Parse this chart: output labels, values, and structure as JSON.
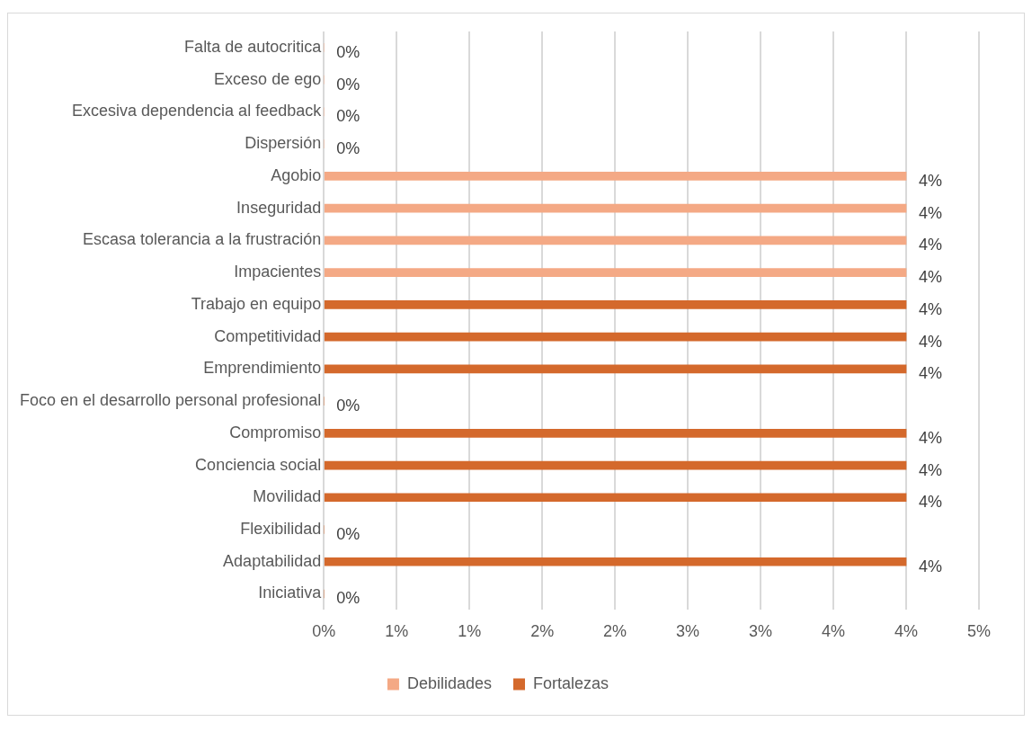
{
  "chart_data": {
    "type": "bar",
    "orientation": "horizontal",
    "categories": [
      "Falta de autocritica",
      "Exceso de ego",
      "Excesiva dependencia al feedback",
      "Dispersión",
      "Agobio",
      "Inseguridad",
      "Escasa tolerancia a la frustración",
      "Impacientes",
      "Trabajo en equipo",
      "Competitividad",
      "Emprendimiento",
      "Foco en el desarrollo personal profesional",
      "Compromiso",
      "Conciencia social",
      "Movilidad",
      "Flexibilidad",
      "Adaptabilidad",
      "Iniciativa"
    ],
    "series": [
      {
        "name": "Debilidades",
        "color": "#f4a985",
        "values": [
          0,
          0,
          0,
          0,
          4,
          4,
          4,
          4,
          null,
          null,
          null,
          null,
          null,
          null,
          null,
          null,
          null,
          null
        ],
        "value_labels": [
          "0%",
          "0%",
          "0%",
          "0%",
          "4%",
          "4%",
          "4%",
          "4%",
          null,
          null,
          null,
          null,
          null,
          null,
          null,
          null,
          null,
          null
        ]
      },
      {
        "name": "Fortalezas",
        "color": "#d4692c",
        "values": [
          null,
          null,
          null,
          null,
          null,
          null,
          null,
          null,
          4,
          4,
          4,
          0,
          4,
          4,
          4,
          0,
          4,
          0
        ],
        "value_labels": [
          null,
          null,
          null,
          null,
          null,
          null,
          null,
          null,
          "4%",
          "4%",
          "4%",
          "0%",
          "4%",
          "4%",
          "4%",
          "0%",
          "4%",
          "0%"
        ]
      }
    ],
    "xlim": [
      0,
      4.5
    ],
    "xticks": [
      {
        "value": 0,
        "label": "0%"
      },
      {
        "value": 0.5,
        "label": "1%"
      },
      {
        "value": 1,
        "label": "1%"
      },
      {
        "value": 1.5,
        "label": "2%"
      },
      {
        "value": 2,
        "label": "2%"
      },
      {
        "value": 2.5,
        "label": "3%"
      },
      {
        "value": 3,
        "label": "3%"
      },
      {
        "value": 3.5,
        "label": "4%"
      },
      {
        "value": 4,
        "label": "4%"
      },
      {
        "value": 4.5,
        "label": "5%"
      }
    ],
    "grid": "x",
    "legend": "bottom"
  }
}
